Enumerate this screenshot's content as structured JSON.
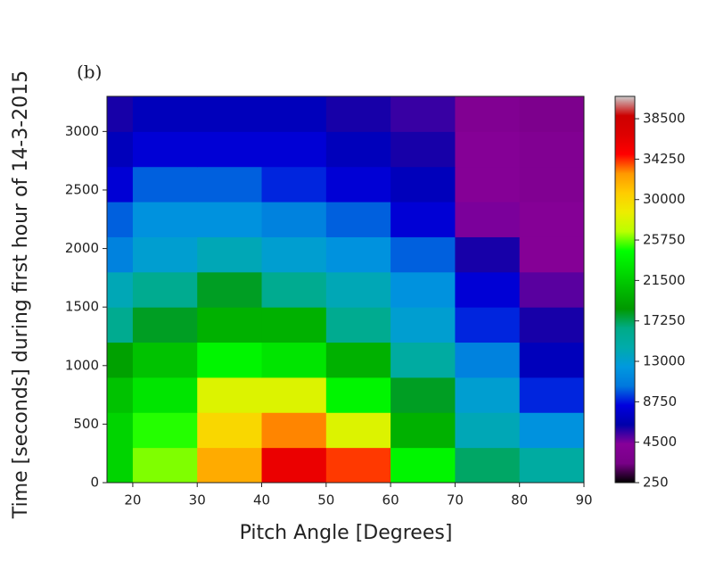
{
  "chart_data": {
    "type": "heatmap",
    "title": "(b)",
    "x_label": "Pitch Angle [Degrees]",
    "y_label": "Time [seconds] during first hour of 14-3-2015",
    "x_edges": [
      16,
      20,
      30,
      40,
      50,
      60,
      70,
      80,
      90
    ],
    "y_edges": [
      0,
      300,
      600,
      900,
      1200,
      1500,
      1800,
      2100,
      2400,
      2700,
      3000,
      3300
    ],
    "z": [
      [
        22000,
        26000,
        32000,
        36000,
        34000,
        24000,
        17000,
        15000
      ],
      [
        22000,
        25000,
        30000,
        33000,
        28000,
        20000,
        14000,
        12000
      ],
      [
        21000,
        23000,
        28000,
        28000,
        24000,
        18000,
        13000,
        9000
      ],
      [
        19000,
        21000,
        24000,
        23000,
        20000,
        15000,
        11000,
        7000
      ],
      [
        16000,
        18000,
        20000,
        20000,
        16000,
        13000,
        9000,
        6000
      ],
      [
        14000,
        16000,
        18000,
        16000,
        14000,
        12000,
        8000,
        5000
      ],
      [
        11000,
        13000,
        14000,
        13000,
        12000,
        10000,
        6000,
        4000
      ],
      [
        10000,
        12000,
        12000,
        11000,
        10000,
        8000,
        4500,
        4000
      ],
      [
        8000,
        10000,
        10000,
        9000,
        8000,
        7000,
        4000,
        3500
      ],
      [
        7000,
        8000,
        8000,
        8000,
        7000,
        6000,
        4000,
        3500
      ],
      [
        6000,
        7000,
        7000,
        7000,
        6000,
        5500,
        3500,
        3000
      ]
    ],
    "xlim": [
      16,
      90
    ],
    "xticks": [
      20,
      30,
      40,
      50,
      60,
      70,
      80,
      90
    ],
    "ylim": [
      0,
      3300
    ],
    "yticks": [
      0,
      500,
      1000,
      1500,
      2000,
      2500,
      3000
    ],
    "colormap": "nipy_spectral",
    "clim": [
      250,
      40850
    ],
    "cticks": [
      250,
      4500,
      8750,
      13000,
      17250,
      21500,
      25750,
      30000,
      34250,
      38500
    ]
  }
}
